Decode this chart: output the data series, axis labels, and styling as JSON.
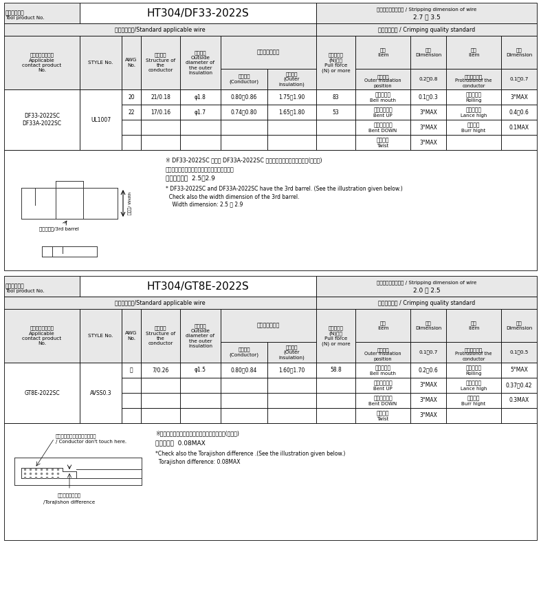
{
  "table1": {
    "tool_model": "HT304/DF33-2022S",
    "stripping_label": "電線ストリップ寸法 / Stripping dimension of wire",
    "stripping_value": "2.7 ～ 3.5",
    "std_wire_label": "標準適合電線/Standard applicable wire",
    "quality_label": "圧着品質基準 / Crimping quality standard",
    "outer_insulation_row_ja": "被覆位置",
    "outer_insulation_row_en": "Outer insulation\nposition",
    "outer_insulation_dim": "0.2～0.8",
    "conductor_tip_ja": "芯線先端位置",
    "conductor_tip_en": "Protrusionof the\nconductor",
    "conductor_tip_dim": "0.1～0.7",
    "data_rows": [
      {
        "applicable": "DF33-2022SC\nDF33A-2022SC",
        "style": "UL1007",
        "awg": "20",
        "structure": "21/0.18",
        "outside_dia": "φ1.8",
        "crimp_cond": "0.80～0.86",
        "crimp_outer": "1.75～1.90",
        "pull_force": "83",
        "item1_ja": "ベルマウス",
        "item1_en": "Bell mouth",
        "dim1": "0.1～0.3",
        "item2_ja": "ローリング",
        "item2_en": "Rolling",
        "dim2": "3°MAX"
      },
      {
        "applicable": "",
        "style": "",
        "awg": "22",
        "structure": "17/0.16",
        "outside_dia": "φ1.7",
        "crimp_cond": "0.74～0.80",
        "crimp_outer": "1.65～1.80",
        "pull_force": "53",
        "item1_ja": "ベントアップ",
        "item1_en": "Bent UP",
        "dim1": "3°MAX",
        "item2_ja": "ランス高さ",
        "item2_en": "Lance high",
        "dim2": "0.4～0.6"
      },
      {
        "applicable": "",
        "style": "",
        "awg": "",
        "structure": "",
        "outside_dia": "",
        "crimp_cond": "",
        "crimp_outer": "",
        "pull_force": "",
        "item1_ja": "ベントダウン",
        "item1_en": "Bent DOWN",
        "dim1": "3°MAX",
        "item2_ja": "バリ高さ",
        "item2_en": "Burr hight",
        "dim2": "0.1MAX"
      },
      {
        "applicable": "",
        "style": "",
        "awg": "",
        "structure": "",
        "outside_dia": "",
        "crimp_cond": "",
        "crimp_outer": "",
        "pull_force": "",
        "item1_ja": "ツイスト",
        "item1_en": "Twist",
        "dim1": "3°MAX",
        "item2_ja": "",
        "item2_en": "",
        "dim2": ""
      }
    ],
    "note_ja1": "※ DF33-2022SC および DF33A-2022SC には第３バレルがあります。(図参照)",
    "note_ja2": "　第３バレルのワイド寸法もご確認ください。",
    "note_ja3": "　ワイド寸法  2.5～2.9",
    "note_en1": "* DF33-2022SC and DF33A-2022SC have the 3rd barrel. (See the illustration given below.)",
    "note_en2": "  Check also the width dimension of the 3rd barrel.",
    "note_en3": "    Width dimension: 2.5 ～ 2.9",
    "barrel_label_ja": "第３バレル/3rd barrel",
    "width_label": "ワイド/ Width"
  },
  "table2": {
    "tool_model": "HT304/GT8E-2022S",
    "stripping_label": "電線ストリップ寸法 / Stripping dimension of wire",
    "stripping_value": "2.0 ～ 2.5",
    "std_wire_label": "標準適合電線/Standard applicable wire",
    "quality_label": "圧着品質基準 / Crimping quality standard",
    "outer_insulation_row_ja": "被覆位置",
    "outer_insulation_row_en": "Outer insulation\nposition",
    "outer_insulation_dim": "0.1～0.7",
    "conductor_tip_ja": "芯線先端位置",
    "conductor_tip_en": "Protrusionof the\nconductor",
    "conductor_tip_dim": "0.1～0.5",
    "data_rows": [
      {
        "applicable": "GT8E-2022SC",
        "style": "AVSS0.3",
        "awg": "－",
        "structure": "7/0.26",
        "outside_dia": "φ1.5",
        "crimp_cond": "0.80～0.84",
        "crimp_outer": "1.60～1.70",
        "pull_force": "58.8",
        "item1_ja": "ベルマウス",
        "item1_en": "Bell mouth",
        "dim1": "0.2～0.6",
        "item2_ja": "ローリング",
        "item2_en": "Rolling",
        "dim2": "5°MAX"
      },
      {
        "applicable": "",
        "style": "",
        "awg": "",
        "structure": "",
        "outside_dia": "",
        "crimp_cond": "",
        "crimp_outer": "",
        "pull_force": "",
        "item1_ja": "ベントアップ",
        "item1_en": "Bent UP",
        "dim1": "3°MAX",
        "item2_ja": "ランス高さ",
        "item2_en": "Lance high",
        "dim2": "0.37～0.42"
      },
      {
        "applicable": "",
        "style": "",
        "awg": "",
        "structure": "",
        "outside_dia": "",
        "crimp_cond": "",
        "crimp_outer": "",
        "pull_force": "",
        "item1_ja": "ベントダウン",
        "item1_en": "Bent DOWN",
        "dim1": "3°MAX",
        "item2_ja": "バリ高さ",
        "item2_en": "Burr hight",
        "dim2": "0.3MAX"
      },
      {
        "applicable": "",
        "style": "",
        "awg": "",
        "structure": "",
        "outside_dia": "",
        "crimp_cond": "",
        "crimp_outer": "",
        "pull_force": "",
        "item1_ja": "ツイスト",
        "item1_en": "Twist",
        "dim1": "3°MAX",
        "item2_ja": "",
        "item2_en": "",
        "dim2": ""
      }
    ],
    "note_ja1": "※トラジションの段差寸法もご確認ください。(図参照)",
    "note_ja2": "　段差寸法  0.08MAX",
    "note_en1": "*Check also the Torajishon difference .(See the illustration given below.)",
    "note_en2": "  Torajishon difference: 0.08MAX",
    "conductor_note_ja": "芯線はバネ部に届かないこと。",
    "conductor_note_en": "/ Conductor don't touch here.",
    "torajishon_label_ja": "トラジション段差",
    "torajishon_label_en": "/Torajishon difference"
  },
  "bg_color": "#ffffff",
  "border_color": "#000000",
  "header_bg": "#e8e8e8"
}
